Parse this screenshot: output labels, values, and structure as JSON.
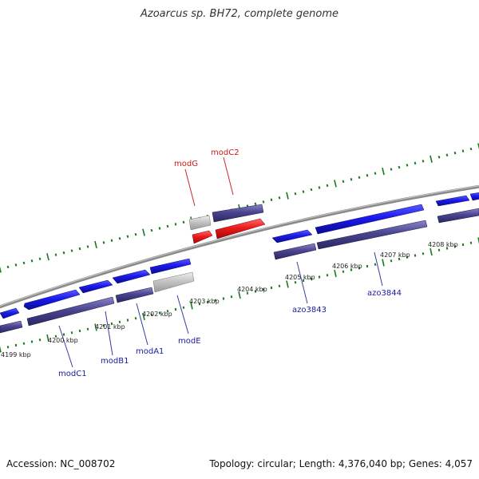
{
  "title": "Azoarcus sp. BH72, complete genome",
  "footer": {
    "accession": "Accession: NC_008702",
    "summary": "Topology: circular; Length: 4,376,040 bp; Genes: 4,057"
  },
  "colors": {
    "forward_gene": "#1a1aee",
    "reverse_gene": "#4a4490",
    "highlight_gene": "#ee1a1a",
    "pseudo_gene": "#bbbbbb",
    "backbone": "#888888",
    "tick": "#1a7a1a",
    "label_blue": "#1a1aa0",
    "label_red": "#cc1a1a"
  },
  "scale_labels": [
    "4199 kbp",
    "4200 kbp",
    "4201 kbp",
    "4202 kbp",
    "4203 kbp",
    "4204 kbp",
    "4205 kbp",
    "4206 kbp",
    "4207 kbp",
    "4208 kbp"
  ],
  "gene_labels": [
    {
      "name": "modC1",
      "color": "blue"
    },
    {
      "name": "modB1",
      "color": "blue"
    },
    {
      "name": "modA1",
      "color": "blue"
    },
    {
      "name": "modE",
      "color": "blue"
    },
    {
      "name": "azo3843",
      "color": "blue"
    },
    {
      "name": "azo3844",
      "color": "blue"
    },
    {
      "name": "modG",
      "color": "red"
    },
    {
      "name": "modC2",
      "color": "red"
    }
  ]
}
